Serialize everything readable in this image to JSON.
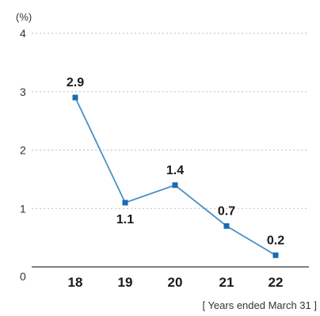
{
  "chart_data": {
    "type": "line",
    "unit_label": "(%)",
    "x": [
      "18",
      "19",
      "20",
      "21",
      "22"
    ],
    "series": [
      {
        "values": [
          2.9,
          1.1,
          1.4,
          0.7,
          0.2
        ]
      }
    ],
    "data_labels": [
      "2.9",
      "1.1",
      "1.4",
      "0.7",
      "0.2"
    ],
    "y_ticks": [
      {
        "value": 0,
        "label": "0"
      },
      {
        "value": 1,
        "label": "1"
      },
      {
        "value": 2,
        "label": "2"
      },
      {
        "value": 3,
        "label": "3"
      },
      {
        "value": 4,
        "label": "4"
      }
    ],
    "ylim": [
      0,
      4
    ],
    "grid": true,
    "xlabel": "[ Years ended March 31 ]",
    "colors": {
      "line": "#4a90c4",
      "marker": "#1a6bb0",
      "grid": "#bbbbbb",
      "axis": "#555555"
    }
  }
}
